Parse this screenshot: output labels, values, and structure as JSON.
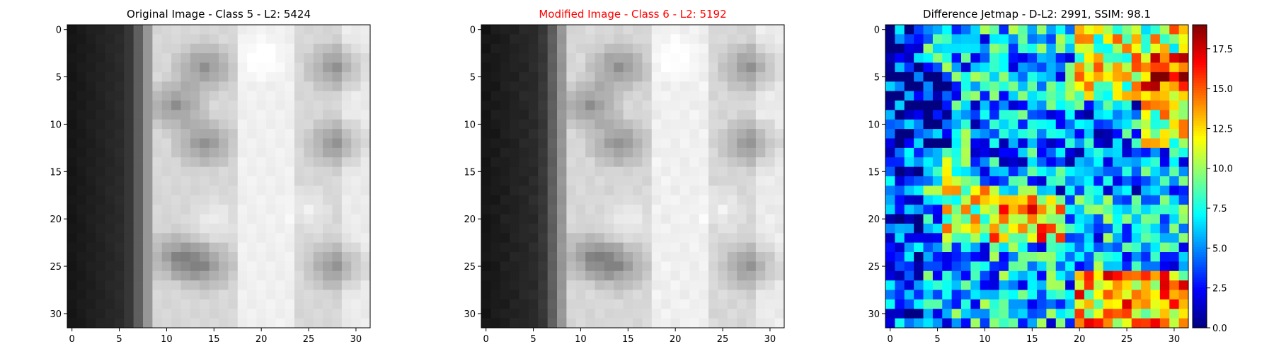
{
  "chart_data": [
    {
      "type": "heatmap",
      "title": "Original Image - Class 5 - L2: 5424",
      "colormap": "gray",
      "grid_size": 32,
      "xlim": [
        0,
        31
      ],
      "ylim": [
        0,
        31
      ],
      "x_ticks": [
        "0",
        "5",
        "10",
        "15",
        "20",
        "25",
        "30"
      ],
      "y_ticks": [
        "0",
        "5",
        "10",
        "15",
        "20",
        "25",
        "30"
      ]
    },
    {
      "type": "heatmap",
      "title": "Modified Image - Class 6 - L2: 5192",
      "title_color": "#ff0000",
      "colormap": "gray",
      "grid_size": 32,
      "xlim": [
        0,
        31
      ],
      "ylim": [
        0,
        31
      ],
      "x_ticks": [
        "0",
        "5",
        "10",
        "15",
        "20",
        "25",
        "30"
      ],
      "y_ticks": [
        "0",
        "5",
        "10",
        "15",
        "20",
        "25",
        "30"
      ]
    },
    {
      "type": "heatmap",
      "title": "Difference Jetmap - D-L2: 2991, SSIM: 98.1",
      "colormap": "jet",
      "grid_size": 32,
      "xlim": [
        0,
        31
      ],
      "ylim": [
        0,
        31
      ],
      "x_ticks": [
        "0",
        "5",
        "10",
        "15",
        "20",
        "25",
        "30"
      ],
      "y_ticks": [
        "0",
        "5",
        "10",
        "15",
        "20",
        "25",
        "30"
      ],
      "colorbar": {
        "range": [
          0,
          19
        ],
        "ticks": [
          "0.0",
          "2.5",
          "5.0",
          "7.5",
          "10.0",
          "12.5",
          "15.0",
          "17.5"
        ]
      }
    }
  ]
}
